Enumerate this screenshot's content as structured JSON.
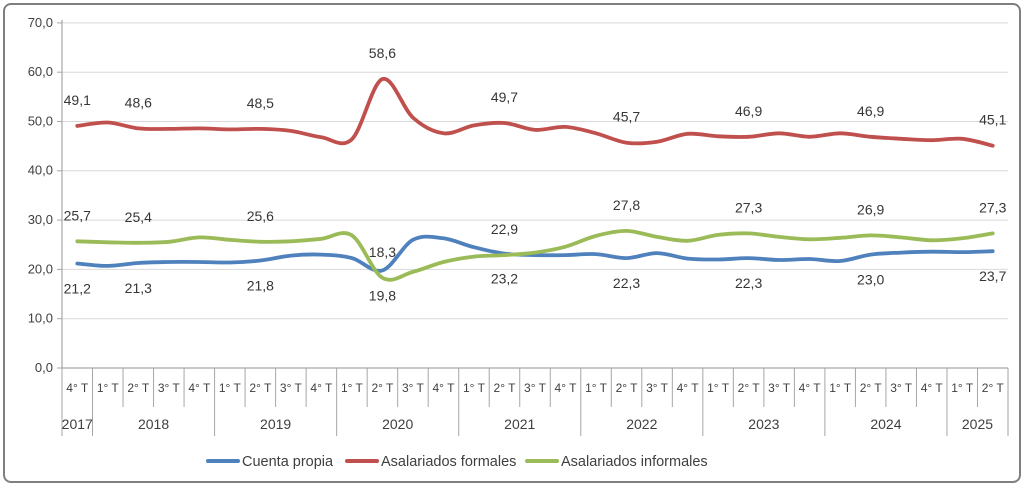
{
  "chart_data": {
    "type": "line",
    "y_axis": {
      "min": 0,
      "max": 70,
      "step": 10,
      "tick_labels": [
        "0,0",
        "10,0",
        "20,0",
        "30,0",
        "40,0",
        "50,0",
        "60,0",
        "70,0"
      ]
    },
    "x_axis": {
      "quarter_labels": [
        "4° T",
        "1° T",
        "2° T",
        "3° T",
        "4° T",
        "1° T",
        "2° T",
        "3° T",
        "4° T",
        "1° T",
        "2° T",
        "3° T",
        "4° T",
        "1° T",
        "2° T",
        "3° T",
        "4° T",
        "1° T",
        "2° T",
        "3° T",
        "4° T",
        "1° T",
        "2° T",
        "3° T",
        "4° T",
        "1° T",
        "2° T",
        "3° T",
        "4° T",
        "1° T",
        "2° T"
      ],
      "year_groups": [
        {
          "label": "2017",
          "count": 1
        },
        {
          "label": "2018",
          "count": 4
        },
        {
          "label": "2019",
          "count": 4
        },
        {
          "label": "2020",
          "count": 4
        },
        {
          "label": "2021",
          "count": 4
        },
        {
          "label": "2022",
          "count": 4
        },
        {
          "label": "2023",
          "count": 4
        },
        {
          "label": "2024",
          "count": 4
        },
        {
          "label": "2025",
          "count": 2
        }
      ]
    },
    "series": [
      {
        "name": "Cuenta propia",
        "color": "#4F81BD",
        "values": [
          21.2,
          20.7,
          21.3,
          21.5,
          21.5,
          21.4,
          21.8,
          22.8,
          23.0,
          22.3,
          19.8,
          26.0,
          26.3,
          24.5,
          23.2,
          22.9,
          22.9,
          23.1,
          22.3,
          23.3,
          22.2,
          22.0,
          22.3,
          21.9,
          22.1,
          21.7,
          23.0,
          23.4,
          23.6,
          23.5,
          23.7
        ],
        "label_position": "below",
        "data_labels": [
          {
            "i": 0,
            "t": "21,2"
          },
          {
            "i": 2,
            "t": "21,3"
          },
          {
            "i": 6,
            "t": "21,8"
          },
          {
            "i": 10,
            "t": "19,8"
          },
          {
            "i": 14,
            "t": "23,2"
          },
          {
            "i": 18,
            "t": "22,3"
          },
          {
            "i": 22,
            "t": "22,3"
          },
          {
            "i": 26,
            "t": "23,0"
          },
          {
            "i": 30,
            "t": "23,7"
          }
        ]
      },
      {
        "name": "Asalariados formales",
        "color": "#C0504D",
        "values": [
          49.1,
          49.8,
          48.6,
          48.5,
          48.6,
          48.4,
          48.5,
          48.1,
          46.8,
          46.4,
          58.6,
          50.8,
          47.6,
          49.2,
          49.7,
          48.3,
          48.9,
          47.6,
          45.7,
          45.9,
          47.5,
          47.0,
          46.9,
          47.6,
          46.9,
          47.6,
          46.9,
          46.5,
          46.2,
          46.5,
          45.1
        ],
        "label_position": "above",
        "data_labels": [
          {
            "i": 0,
            "t": "49,1"
          },
          {
            "i": 2,
            "t": "48,6"
          },
          {
            "i": 6,
            "t": "48,5"
          },
          {
            "i": 10,
            "t": "58,6"
          },
          {
            "i": 14,
            "t": "49,7"
          },
          {
            "i": 18,
            "t": "45,7"
          },
          {
            "i": 22,
            "t": "46,9"
          },
          {
            "i": 26,
            "t": "46,9"
          },
          {
            "i": 30,
            "t": "45,1"
          }
        ]
      },
      {
        "name": "Asalariados informales",
        "color": "#9BBB59",
        "values": [
          25.7,
          25.5,
          25.4,
          25.6,
          26.5,
          26.0,
          25.6,
          25.7,
          26.2,
          26.9,
          18.3,
          19.5,
          21.5,
          22.6,
          22.9,
          23.4,
          24.6,
          26.8,
          27.8,
          26.6,
          25.8,
          27.0,
          27.3,
          26.6,
          26.1,
          26.4,
          26.9,
          26.5,
          25.9,
          26.3,
          27.3
        ],
        "label_position": "above",
        "data_labels": [
          {
            "i": 0,
            "t": "25,7"
          },
          {
            "i": 2,
            "t": "25,4"
          },
          {
            "i": 6,
            "t": "25,6"
          },
          {
            "i": 10,
            "t": "18,3"
          },
          {
            "i": 14,
            "t": "22,9"
          },
          {
            "i": 18,
            "t": "27,8"
          },
          {
            "i": 22,
            "t": "27,3"
          },
          {
            "i": 26,
            "t": "26,9"
          },
          {
            "i": 30,
            "t": "27,3"
          }
        ]
      }
    ],
    "legend": {
      "position": "bottom"
    },
    "colors": {
      "frame_border": "#7F7F7F",
      "gridline": "#D9D9D9",
      "axis_line": "#A6A6A6",
      "axis_text": "#404040",
      "data_label_text": "#363636",
      "background": "#FFFFFF"
    }
  }
}
